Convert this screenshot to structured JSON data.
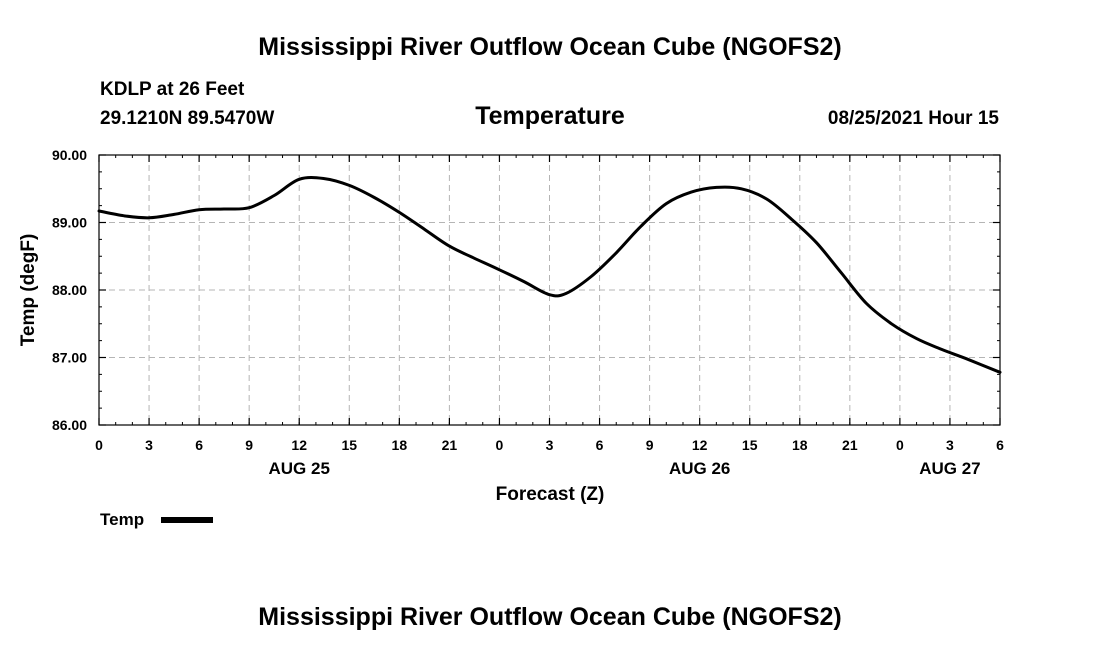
{
  "header": {
    "title_top": "Mississippi River Outflow Ocean Cube (NGOFS2)",
    "title_bottom": "Mississippi River Outflow Ocean Cube (NGOFS2)",
    "station": "KDLP at 26 Feet",
    "coords": "29.1210N  89.5470W",
    "variable": "Temperature",
    "datetime": "08/25/2021 Hour 15"
  },
  "legend": {
    "label": "Temp"
  },
  "chart_data": {
    "type": "line",
    "title": "Temperature",
    "xlabel": "Forecast (Z)",
    "ylabel": "Temp (degF)",
    "xlim": [
      0,
      54
    ],
    "ylim": [
      86.0,
      90.0
    ],
    "yticks": [
      86.0,
      87.0,
      88.0,
      89.0,
      90.0
    ],
    "ytick_labels": [
      "86.00",
      "87.00",
      "88.00",
      "89.00",
      "90.00"
    ],
    "xticks": [
      0,
      3,
      6,
      9,
      12,
      15,
      18,
      21,
      24,
      27,
      30,
      33,
      36,
      39,
      42,
      45,
      48,
      51,
      54
    ],
    "xtick_labels": [
      "0",
      "3",
      "6",
      "9",
      "12",
      "15",
      "18",
      "21",
      "0",
      "3",
      "6",
      "9",
      "12",
      "15",
      "18",
      "21",
      "0",
      "3",
      "6"
    ],
    "date_labels": [
      {
        "x": 12,
        "label": "AUG 25"
      },
      {
        "x": 36,
        "label": "AUG 26"
      },
      {
        "x": 51,
        "label": "AUG 27"
      }
    ],
    "grid": true,
    "series": [
      {
        "name": "Temp",
        "color": "#000000",
        "x": [
          0,
          1.5,
          3,
          4.5,
          6,
          7.5,
          9,
          10.5,
          12,
          13.5,
          15,
          16.5,
          18,
          19.5,
          21,
          22.5,
          24,
          25.5,
          27,
          28,
          29.5,
          31,
          32.5,
          34,
          35.5,
          37,
          38.5,
          40,
          41.5,
          43,
          44.5,
          46,
          47.5,
          49,
          50.5,
          52,
          54
        ],
        "values": [
          89.17,
          89.1,
          89.07,
          89.12,
          89.19,
          89.2,
          89.22,
          89.4,
          89.64,
          89.65,
          89.55,
          89.37,
          89.15,
          88.9,
          88.65,
          88.47,
          88.3,
          88.12,
          87.93,
          87.95,
          88.2,
          88.55,
          88.95,
          89.28,
          89.45,
          89.52,
          89.5,
          89.35,
          89.05,
          88.7,
          88.25,
          87.8,
          87.5,
          87.28,
          87.12,
          86.98,
          86.78
        ]
      }
    ]
  }
}
